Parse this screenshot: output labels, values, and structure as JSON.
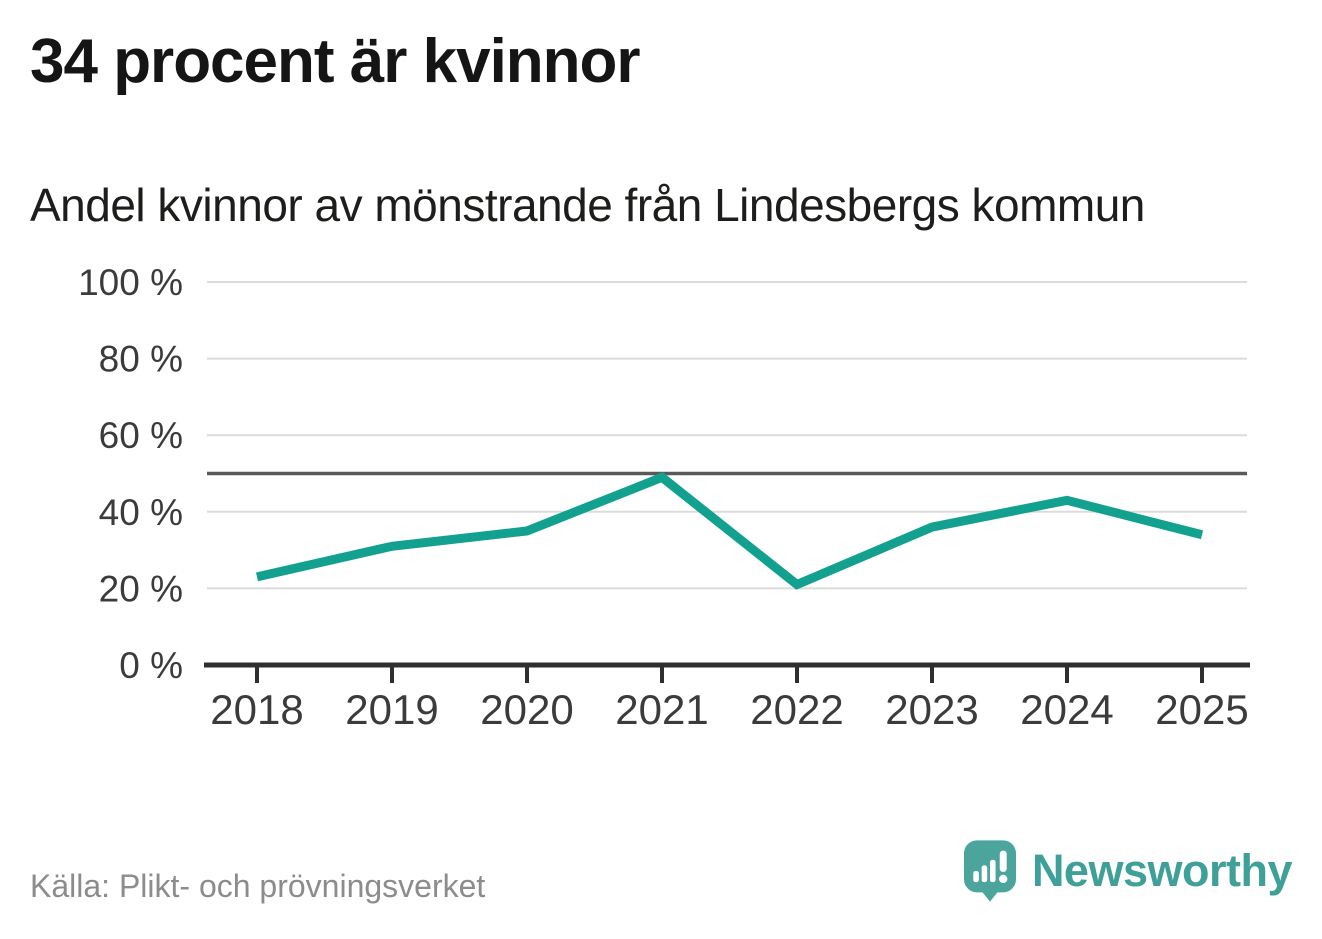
{
  "chart_data": {
    "type": "line",
    "title": "34 procent är kvinnor",
    "subtitle": "Andel kvinnor av mönstrande från Lindesbergs kommun",
    "categories": [
      "2018",
      "2019",
      "2020",
      "2021",
      "2022",
      "2023",
      "2024",
      "2025"
    ],
    "series": [
      {
        "name": "Andel kvinnor av mönstrande",
        "values": [
          23,
          31,
          35,
          49,
          21,
          36,
          43,
          34
        ]
      }
    ],
    "unit": "%",
    "ylim": [
      0,
      100
    ],
    "y_ticks": [
      {
        "value": 0,
        "label": "0 %"
      },
      {
        "value": 20,
        "label": "20 %"
      },
      {
        "value": 40,
        "label": "40 %"
      },
      {
        "value": 60,
        "label": "60 %"
      },
      {
        "value": 80,
        "label": "80 %"
      },
      {
        "value": 100,
        "label": "100 %"
      }
    ],
    "reference_line": {
      "value": 50
    },
    "grid": "horizontal",
    "legend": "none"
  },
  "footer": {
    "source": "Källa: Plikt- och prövningsverket",
    "brand": "Newsworthy"
  },
  "colors": {
    "accent_line": "#12A08F",
    "grid": "#DBDBDB",
    "reference": "#595959",
    "axis": "#2F2F2F",
    "tick_text": "#3B3B3B",
    "title_text": "#151515",
    "source_text": "#8C8C8C",
    "brand_bubble": "#4BA59D",
    "brand_word": "#3EA099",
    "brand_glyph": "#FFFFFF"
  }
}
